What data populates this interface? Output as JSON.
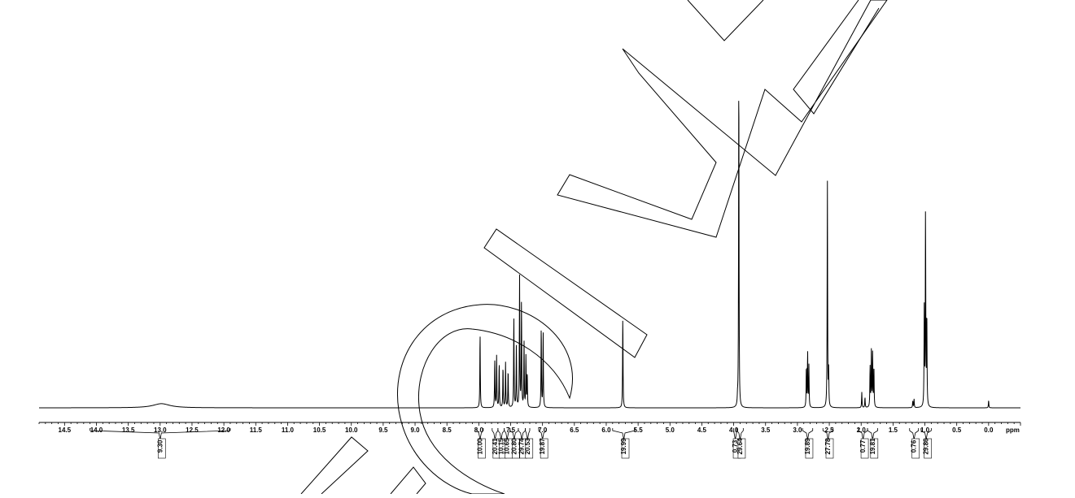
{
  "chart_data": {
    "type": "line",
    "title": "",
    "xlabel": "ppm",
    "ylabel": "",
    "xlim": [
      14.9,
      -0.5
    ],
    "x_reversed": true,
    "grid": false,
    "x_ticks": [
      "14.5",
      "14.0",
      "13.5",
      "13.0",
      "12.5",
      "12.0",
      "11.5",
      "11.0",
      "10.5",
      "10.0",
      "9.5",
      "9.0",
      "8.5",
      "8.0",
      "7.5",
      "7.0",
      "6.5",
      "6.0",
      "5.5",
      "5.0",
      "4.5",
      "4.0",
      "3.5",
      "3.0",
      "2.5",
      "2.0",
      "1.5",
      "1.0",
      "0.5",
      "0.0"
    ],
    "peaks": [
      {
        "ppm": 12.98,
        "height": 0.012,
        "width": 0.16
      },
      {
        "ppm": 7.98,
        "height": 0.22
      },
      {
        "ppm": 7.75,
        "height": 0.14
      },
      {
        "ppm": 7.72,
        "height": 0.15
      },
      {
        "ppm": 7.68,
        "height": 0.13
      },
      {
        "ppm": 7.62,
        "height": 0.12
      },
      {
        "ppm": 7.58,
        "height": 0.13
      },
      {
        "ppm": 7.54,
        "height": 0.11
      },
      {
        "ppm": 7.45,
        "height": 0.27
      },
      {
        "ppm": 7.41,
        "height": 0.18
      },
      {
        "ppm": 7.36,
        "height": 0.38
      },
      {
        "ppm": 7.33,
        "height": 0.31
      },
      {
        "ppm": 7.29,
        "height": 0.19
      },
      {
        "ppm": 7.26,
        "height": 0.15
      },
      {
        "ppm": 7.24,
        "height": 0.1
      },
      {
        "ppm": 7.02,
        "height": 0.24
      },
      {
        "ppm": 6.99,
        "height": 0.22
      },
      {
        "ppm": 5.74,
        "height": 0.27
      },
      {
        "ppm": 3.94,
        "height": 0.02
      },
      {
        "ppm": 3.92,
        "height": 1.0
      },
      {
        "ppm": 2.86,
        "height": 0.12
      },
      {
        "ppm": 2.84,
        "height": 0.16
      },
      {
        "ppm": 2.82,
        "height": 0.12
      },
      {
        "ppm": 2.53,
        "height": 0.66
      },
      {
        "ppm": 2.51,
        "height": 0.1
      },
      {
        "ppm": 1.99,
        "height": 0.045
      },
      {
        "ppm": 1.94,
        "height": 0.03
      },
      {
        "ppm": 1.86,
        "height": 0.12
      },
      {
        "ppm": 1.84,
        "height": 0.16
      },
      {
        "ppm": 1.82,
        "height": 0.16
      },
      {
        "ppm": 1.8,
        "height": 0.12
      },
      {
        "ppm": 1.19,
        "height": 0.02
      },
      {
        "ppm": 1.17,
        "height": 0.025
      },
      {
        "ppm": 1.01,
        "height": 0.28
      },
      {
        "ppm": 0.99,
        "height": 0.57
      },
      {
        "ppm": 0.97,
        "height": 0.27
      },
      {
        "ppm": 0.0,
        "height": 0.022
      }
    ],
    "integrals": [
      {
        "value": "9.30",
        "from": 14.1,
        "to": 11.9
      },
      {
        "value": "10.00",
        "from": 8.03,
        "to": 7.93
      },
      {
        "value": "20.41",
        "from": 7.79,
        "to": 7.7
      },
      {
        "value": "10.15",
        "from": 7.7,
        "to": 7.6
      },
      {
        "value": "10.65",
        "from": 7.6,
        "to": 7.51
      },
      {
        "value": "20.80",
        "from": 7.51,
        "to": 7.38
      },
      {
        "value": "29.74",
        "from": 7.38,
        "to": 7.27
      },
      {
        "value": "20.53",
        "from": 7.27,
        "to": 7.2
      },
      {
        "value": "19.87",
        "from": 7.06,
        "to": 6.94
      },
      {
        "value": "19.99",
        "from": 5.9,
        "to": 5.55
      },
      {
        "value": "0.73",
        "from": 4.0,
        "to": 3.95
      },
      {
        "value": "29.64",
        "from": 3.95,
        "to": 3.85
      },
      {
        "value": "19.89",
        "from": 2.92,
        "to": 2.76
      },
      {
        "value": "27.78",
        "from": 2.6,
        "to": 2.44
      },
      {
        "value": "0.77",
        "from": 2.04,
        "to": 1.9
      },
      {
        "value": "19.81",
        "from": 1.9,
        "to": 1.74
      },
      {
        "value": "0.76",
        "from": 1.24,
        "to": 1.1
      },
      {
        "value": "29.86",
        "from": 1.06,
        "to": 0.9
      }
    ]
  },
  "watermark": {
    "color": "#000000"
  }
}
